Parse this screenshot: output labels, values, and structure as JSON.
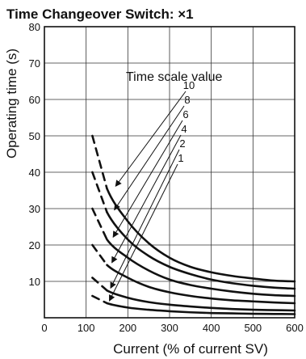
{
  "chart_data": {
    "type": "line",
    "title": "Time Changeover Switch: ×1",
    "xlabel": "Current (% of current SV)",
    "ylabel": "Operating time (s)",
    "xlim": [
      0,
      600
    ],
    "ylim": [
      0,
      80
    ],
    "xticks": [
      "0",
      "100",
      "200",
      "300",
      "400",
      "500",
      "600"
    ],
    "yticks": [
      "10",
      "20",
      "30",
      "40",
      "50",
      "60",
      "70",
      "80"
    ],
    "grid": true,
    "legend_title": "Time scale value",
    "x": [
      115,
      150,
      200,
      250,
      300,
      350,
      400,
      450,
      500,
      550,
      600
    ],
    "series": [
      {
        "name": "10",
        "values": [
          50,
          35.5,
          26.5,
          20.5,
          16.5,
          14,
          12.5,
          11.5,
          10.8,
          10.2,
          10
        ]
      },
      {
        "name": "8",
        "values": [
          40,
          29,
          21.5,
          17,
          14,
          12,
          10.5,
          9.5,
          8.8,
          8.3,
          8
        ]
      },
      {
        "name": "6",
        "values": [
          30,
          21.5,
          16.5,
          13,
          10.5,
          9,
          8,
          7.2,
          6.6,
          6.2,
          6
        ]
      },
      {
        "name": "4",
        "values": [
          20,
          14.5,
          11,
          8.5,
          7,
          6,
          5.3,
          4.8,
          4.5,
          4.2,
          4
        ]
      },
      {
        "name": "2",
        "values": [
          11,
          7.5,
          5.5,
          4.3,
          3.6,
          3.1,
          2.7,
          2.4,
          2.2,
          2.1,
          2
        ]
      },
      {
        "name": "1",
        "values": [
          6,
          4,
          2.8,
          2.2,
          1.8,
          1.5,
          1.3,
          1.2,
          1.1,
          1.05,
          1
        ]
      }
    ]
  }
}
